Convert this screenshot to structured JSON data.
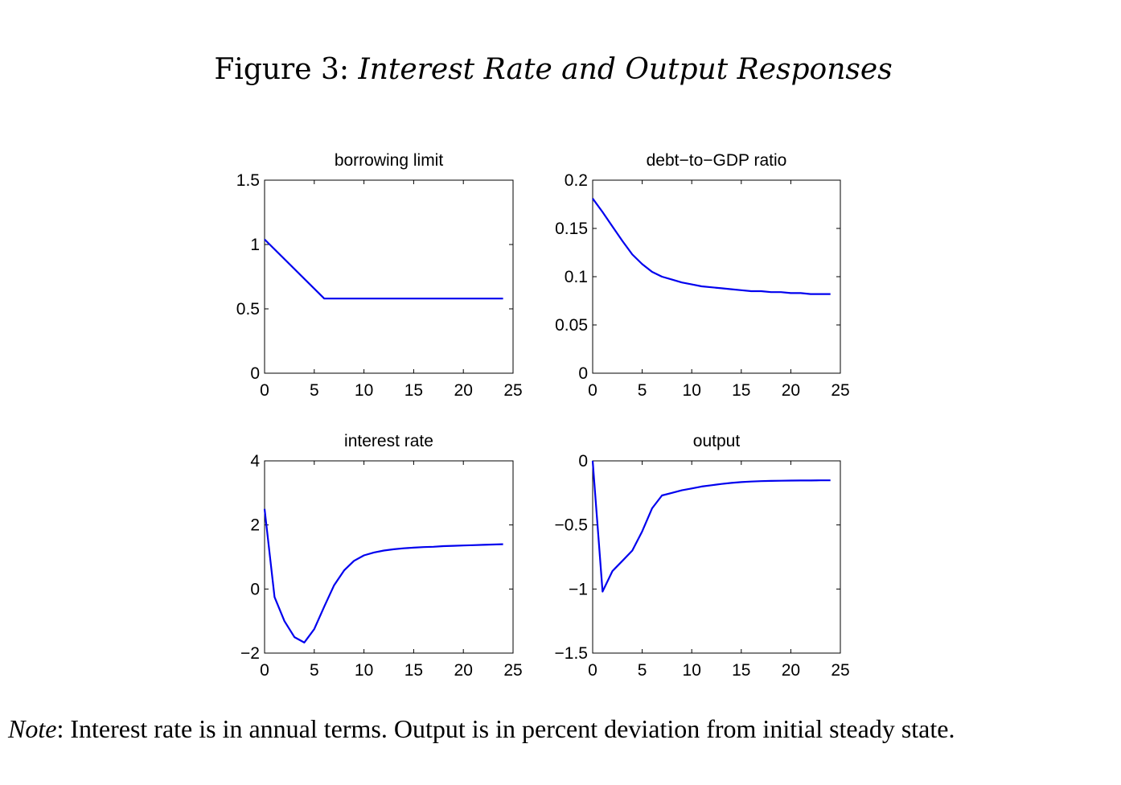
{
  "figure": {
    "label": "Figure 3:",
    "title": "Interest Rate and Output Responses"
  },
  "note": {
    "label": "Note",
    "text": ": Interest rate is in annual terms. Output is in percent deviation from initial steady state."
  },
  "colors": {
    "line": "#0000ee",
    "axes": "#000000"
  },
  "chart_data": [
    {
      "type": "line",
      "title": "borrowing limit",
      "xlim": [
        0,
        25
      ],
      "ylim": [
        0,
        1.5
      ],
      "xticks": [
        0,
        5,
        10,
        15,
        20,
        25
      ],
      "xtick_labels": [
        "0",
        "5",
        "10",
        "15",
        "20",
        "25"
      ],
      "yticks": [
        0,
        0.5,
        1,
        1.5
      ],
      "ytick_labels": [
        "0",
        "0.5",
        "1",
        "1.5"
      ],
      "grid": false,
      "x": [
        0,
        6,
        24
      ],
      "y": [
        1.04,
        0.58,
        0.58
      ]
    },
    {
      "type": "line",
      "title": "debt−to−GDP ratio",
      "xlim": [
        0,
        25
      ],
      "ylim": [
        0,
        0.2
      ],
      "xticks": [
        0,
        5,
        10,
        15,
        20,
        25
      ],
      "xtick_labels": [
        "0",
        "5",
        "10",
        "15",
        "20",
        "25"
      ],
      "yticks": [
        0,
        0.05,
        0.1,
        0.15,
        0.2
      ],
      "ytick_labels": [
        "0",
        "0.05",
        "0.1",
        "0.15",
        "0.2"
      ],
      "grid": false,
      "x": [
        0,
        1,
        2,
        3,
        4,
        5,
        6,
        7,
        8,
        9,
        10,
        11,
        12,
        13,
        14,
        15,
        16,
        17,
        18,
        19,
        20,
        21,
        22,
        23,
        24
      ],
      "y": [
        0.181,
        0.167,
        0.152,
        0.137,
        0.123,
        0.113,
        0.105,
        0.1,
        0.097,
        0.094,
        0.092,
        0.09,
        0.089,
        0.088,
        0.087,
        0.086,
        0.085,
        0.085,
        0.084,
        0.084,
        0.083,
        0.083,
        0.082,
        0.082,
        0.082
      ]
    },
    {
      "type": "line",
      "title": "interest rate",
      "xlim": [
        0,
        25
      ],
      "ylim": [
        -2,
        4
      ],
      "xticks": [
        0,
        5,
        10,
        15,
        20,
        25
      ],
      "xtick_labels": [
        "0",
        "5",
        "10",
        "15",
        "20",
        "25"
      ],
      "yticks": [
        -2,
        0,
        2,
        4
      ],
      "ytick_labels": [
        "−2",
        "0",
        "2",
        "4"
      ],
      "grid": false,
      "x": [
        0,
        1,
        2,
        3,
        4,
        5,
        6,
        7,
        8,
        9,
        10,
        11,
        12,
        13,
        14,
        15,
        16,
        17,
        18,
        19,
        20,
        21,
        22,
        23,
        24
      ],
      "y": [
        2.5,
        -0.25,
        -1.0,
        -1.5,
        -1.67,
        -1.25,
        -0.55,
        0.12,
        0.58,
        0.88,
        1.05,
        1.14,
        1.2,
        1.24,
        1.27,
        1.29,
        1.31,
        1.32,
        1.34,
        1.35,
        1.36,
        1.37,
        1.38,
        1.39,
        1.4
      ]
    },
    {
      "type": "line",
      "title": "output",
      "xlim": [
        0,
        25
      ],
      "ylim": [
        -1.5,
        0
      ],
      "xticks": [
        0,
        5,
        10,
        15,
        20,
        25
      ],
      "xtick_labels": [
        "0",
        "5",
        "10",
        "15",
        "20",
        "25"
      ],
      "yticks": [
        -1.5,
        -1,
        -0.5,
        0
      ],
      "ytick_labels": [
        "−1.5",
        "−1",
        "−0.5",
        "0"
      ],
      "grid": false,
      "x": [
        0,
        1,
        2,
        3,
        4,
        5,
        6,
        7,
        8,
        9,
        10,
        11,
        12,
        13,
        14,
        15,
        16,
        17,
        18,
        19,
        20,
        21,
        22,
        23,
        24
      ],
      "y": [
        0,
        -1.02,
        -0.86,
        -0.78,
        -0.7,
        -0.55,
        -0.37,
        -0.27,
        -0.25,
        -0.23,
        -0.215,
        -0.2,
        -0.19,
        -0.18,
        -0.172,
        -0.166,
        -0.161,
        -0.158,
        -0.156,
        -0.155,
        -0.154,
        -0.153,
        -0.153,
        -0.152,
        -0.152
      ]
    }
  ]
}
